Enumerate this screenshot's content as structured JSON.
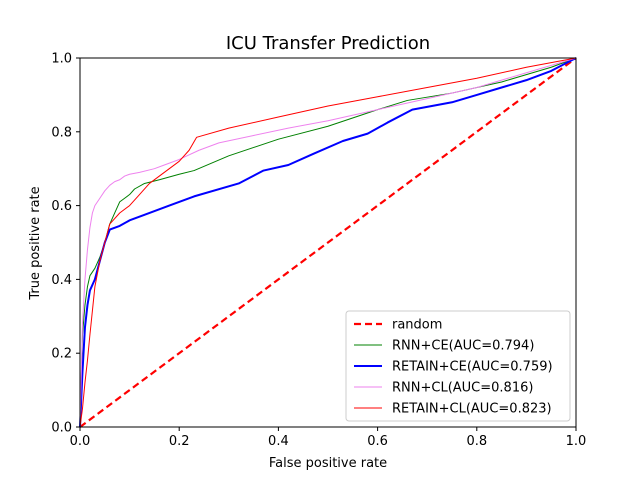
{
  "chart_data": {
    "type": "line",
    "title": "ICU Transfer Prediction",
    "xlabel": "False positive rate",
    "ylabel": "True positive rate",
    "xlim": [
      0,
      1
    ],
    "ylim": [
      0,
      1
    ],
    "xticks": [
      "0.0",
      "0.2",
      "0.4",
      "0.6",
      "0.8",
      "1.0"
    ],
    "yticks": [
      "0.0",
      "0.2",
      "0.4",
      "0.6",
      "0.8",
      "1.0"
    ],
    "grid": false,
    "legend_position": "lower-right",
    "series": [
      {
        "name": "random",
        "color": "#ff0000",
        "style": "dashed",
        "x": [
          0,
          1
        ],
        "y": [
          0,
          1
        ]
      },
      {
        "name": "RNN+CE(AUC=0.794)",
        "color": "#008000",
        "style": "solid",
        "x": [
          0,
          0.005,
          0.01,
          0.015,
          0.02,
          0.03,
          0.04,
          0.05,
          0.06,
          0.07,
          0.08,
          0.09,
          0.1,
          0.11,
          0.13,
          0.16,
          0.2,
          0.23,
          0.3,
          0.4,
          0.5,
          0.6,
          0.66,
          0.75,
          0.85,
          0.95,
          1.0
        ],
        "y": [
          0,
          0.25,
          0.33,
          0.38,
          0.41,
          0.43,
          0.46,
          0.5,
          0.55,
          0.58,
          0.61,
          0.62,
          0.63,
          0.645,
          0.66,
          0.67,
          0.685,
          0.695,
          0.735,
          0.78,
          0.815,
          0.86,
          0.885,
          0.905,
          0.935,
          0.975,
          1.0
        ]
      },
      {
        "name": "RETAIN+CE(AUC=0.759)",
        "color": "#0000ff",
        "style": "solid",
        "x": [
          0,
          0.005,
          0.01,
          0.015,
          0.02,
          0.03,
          0.04,
          0.05,
          0.06,
          0.08,
          0.1,
          0.13,
          0.18,
          0.23,
          0.32,
          0.37,
          0.42,
          0.47,
          0.53,
          0.58,
          0.62,
          0.67,
          0.75,
          0.8,
          0.85,
          0.9,
          0.95,
          1.0
        ],
        "y": [
          0,
          0.15,
          0.27,
          0.33,
          0.37,
          0.4,
          0.45,
          0.5,
          0.535,
          0.545,
          0.56,
          0.575,
          0.6,
          0.625,
          0.66,
          0.695,
          0.71,
          0.74,
          0.775,
          0.795,
          0.825,
          0.86,
          0.88,
          0.9,
          0.92,
          0.94,
          0.965,
          1.0
        ]
      },
      {
        "name": "RNN+CL(AUC=0.816)",
        "color": "#ee82ee",
        "style": "solid",
        "x": [
          0,
          0.005,
          0.01,
          0.015,
          0.02,
          0.025,
          0.03,
          0.04,
          0.05,
          0.06,
          0.07,
          0.08,
          0.09,
          0.1,
          0.12,
          0.15,
          0.17,
          0.2,
          0.24,
          0.28,
          0.35,
          0.42,
          0.5,
          0.6,
          0.7,
          0.8,
          0.9,
          1.0
        ],
        "y": [
          0,
          0.28,
          0.4,
          0.48,
          0.54,
          0.58,
          0.6,
          0.62,
          0.64,
          0.655,
          0.665,
          0.67,
          0.68,
          0.685,
          0.69,
          0.7,
          0.71,
          0.725,
          0.75,
          0.77,
          0.79,
          0.81,
          0.83,
          0.86,
          0.89,
          0.92,
          0.96,
          1.0
        ]
      },
      {
        "name": "RETAIN+CL(AUC=0.823)",
        "color": "#ff0000",
        "style": "solid",
        "x": [
          0,
          0.005,
          0.01,
          0.015,
          0.02,
          0.03,
          0.04,
          0.05,
          0.06,
          0.08,
          0.1,
          0.12,
          0.14,
          0.16,
          0.18,
          0.2,
          0.22,
          0.235,
          0.3,
          0.4,
          0.5,
          0.6,
          0.7,
          0.8,
          0.9,
          1.0
        ],
        "y": [
          0,
          0.05,
          0.12,
          0.18,
          0.25,
          0.38,
          0.45,
          0.5,
          0.55,
          0.58,
          0.6,
          0.63,
          0.66,
          0.68,
          0.7,
          0.72,
          0.75,
          0.785,
          0.81,
          0.84,
          0.87,
          0.895,
          0.92,
          0.945,
          0.975,
          1.0
        ]
      }
    ]
  }
}
